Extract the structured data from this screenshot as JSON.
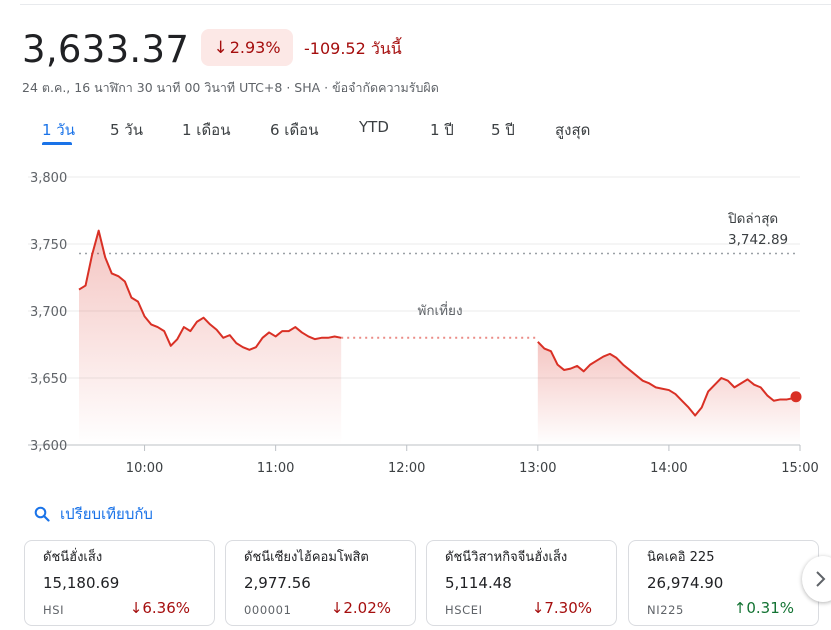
{
  "quote": {
    "price": "3,633.37",
    "percent_change": "2.93%",
    "absolute_change": "-109.52 วันนี้",
    "meta": "24 ต.ค., 16 นาฬิกา 30 นาที 00 วินาที UTC+8 · SHA · ข้อจำกัดความรับผิด",
    "direction": "down"
  },
  "tabs": [
    {
      "label": "1 วัน",
      "active": true
    },
    {
      "label": "5 วัน",
      "active": false
    },
    {
      "label": "1 เดือน",
      "active": false
    },
    {
      "label": "6 เดือน",
      "active": false
    },
    {
      "label": "YTD",
      "active": false
    },
    {
      "label": "1 ปี",
      "active": false
    },
    {
      "label": "5 ปี",
      "active": false
    },
    {
      "label": "สูงสุด",
      "active": false
    }
  ],
  "chart_data": {
    "type": "area",
    "y_ticks": [
      "3,800",
      "3,750",
      "3,700",
      "3,650",
      "3,600"
    ],
    "y_tick_values": [
      3800,
      3750,
      3700,
      3650,
      3600
    ],
    "x_ticks": [
      "10:00",
      "11:00",
      "12:00",
      "13:00",
      "14:00",
      "15:00"
    ],
    "ylim": [
      3600,
      3800
    ],
    "previous_close": {
      "label": "ปิดล่าสุด",
      "value_label": "3,742.89",
      "value": 3742.89
    },
    "break_label": "พักเที่ยง",
    "line_color": "#d93025",
    "morning_session": {
      "times": [
        "09:30",
        "09:33",
        "09:36",
        "09:39",
        "09:42",
        "09:45",
        "09:48",
        "09:51",
        "09:54",
        "09:57",
        "10:00",
        "10:03",
        "10:06",
        "10:09",
        "10:12",
        "10:15",
        "10:18",
        "10:21",
        "10:24",
        "10:27",
        "10:30",
        "10:33",
        "10:36",
        "10:39",
        "10:42",
        "10:45",
        "10:48",
        "10:51",
        "10:54",
        "10:57",
        "11:00",
        "11:03",
        "11:06",
        "11:09",
        "11:12",
        "11:15",
        "11:18",
        "11:21",
        "11:24",
        "11:27",
        "11:30"
      ],
      "values": [
        3716,
        3719,
        3742,
        3760,
        3740,
        3728,
        3726,
        3722,
        3710,
        3707,
        3696,
        3690,
        3688,
        3685,
        3674,
        3679,
        3688,
        3685,
        3692,
        3695,
        3690,
        3686,
        3680,
        3682,
        3676,
        3673,
        3671,
        3673,
        3680,
        3684,
        3681,
        3685,
        3685,
        3688,
        3684,
        3681,
        3679,
        3680,
        3680,
        3681,
        3680
      ]
    },
    "afternoon_session": {
      "times": [
        "13:00",
        "13:03",
        "13:06",
        "13:09",
        "13:12",
        "13:15",
        "13:18",
        "13:21",
        "13:24",
        "13:27",
        "13:30",
        "13:33",
        "13:36",
        "13:39",
        "13:42",
        "13:45",
        "13:48",
        "13:51",
        "13:54",
        "13:57",
        "14:00",
        "14:03",
        "14:06",
        "14:09",
        "14:12",
        "14:15",
        "14:18",
        "14:21",
        "14:24",
        "14:27",
        "14:30",
        "14:33",
        "14:36",
        "14:39",
        "14:42",
        "14:45",
        "14:48",
        "14:51",
        "14:54",
        "14:57",
        "15:00"
      ],
      "values": [
        3677,
        3672,
        3670,
        3660,
        3656,
        3657,
        3659,
        3655,
        3660,
        3663,
        3666,
        3668,
        3665,
        3660,
        3656,
        3652,
        3648,
        3646,
        3643,
        3642,
        3641,
        3638,
        3633,
        3628,
        3622,
        3628,
        3640,
        3645,
        3650,
        3648,
        3643,
        3646,
        3649,
        3645,
        3643,
        3637,
        3633,
        3634,
        3634,
        3635,
        3636
      ]
    }
  },
  "compare": {
    "label": "เปรียบเทียบกับ"
  },
  "cards": [
    {
      "name": "ดัชนีฮั่งเส็ง",
      "value": "15,180.69",
      "symbol": "HSI",
      "change": "6.36%",
      "direction": "down"
    },
    {
      "name": "ดัชนีเซียงไฮ้คอมโพสิต",
      "value": "2,977.56",
      "symbol": "000001",
      "change": "2.02%",
      "direction": "down"
    },
    {
      "name": "ดัชนีวิสาหกิจจีนฮั่งเส็ง",
      "value": "5,114.48",
      "symbol": "HSCEI",
      "change": "7.30%",
      "direction": "down"
    },
    {
      "name": "นิคเคอิ 225",
      "value": "26,974.90",
      "symbol": "NI225",
      "change": "0.31%",
      "direction": "up"
    }
  ],
  "colors": {
    "accent": "#1a73e8",
    "negative": "#a50e0e",
    "positive": "#137333",
    "line": "#d93025"
  }
}
